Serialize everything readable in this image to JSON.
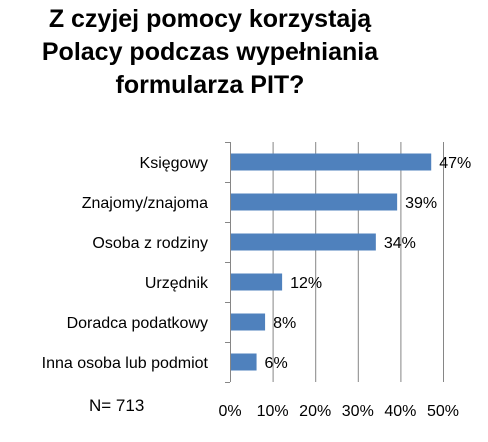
{
  "chart_data": {
    "type": "bar",
    "orientation": "horizontal",
    "title_lines": [
      "Z czyjej pomocy korzystają",
      "Polacy podczas wypełniania",
      "formularza PIT?"
    ],
    "categories": [
      "Księgowy",
      "Znajomy/znajoma",
      "Osoba z rodziny",
      "Urzędnik",
      "Doradca podatkowy",
      "Inna osoba lub podmiot"
    ],
    "values": [
      47,
      39,
      34,
      12,
      8,
      6
    ],
    "value_labels": [
      "47%",
      "39%",
      "34%",
      "12%",
      "8%",
      "6%"
    ],
    "xlim": [
      0,
      50
    ],
    "x_ticks": [
      0,
      10,
      20,
      30,
      40,
      50
    ],
    "x_tick_labels": [
      "0%",
      "10%",
      "20%",
      "30%",
      "40%",
      "50%"
    ],
    "grid": "vertical",
    "legend": "none",
    "bar_color": "#4F81BD",
    "grid_color": "#868686",
    "note": "N= 713"
  }
}
